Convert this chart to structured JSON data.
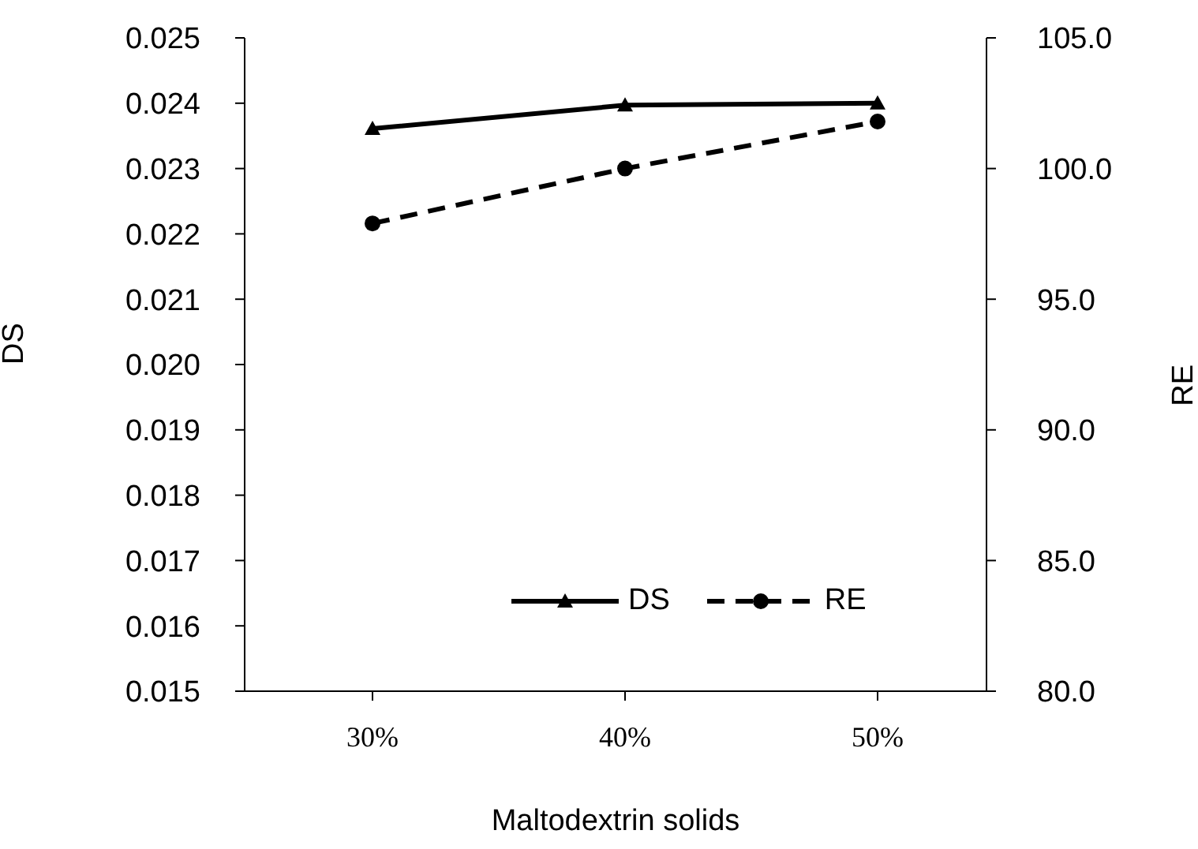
{
  "chart_data": {
    "type": "line",
    "xlabel": "Maltodextrin solids",
    "ylabel": "DS",
    "y2label": "RE",
    "categories": [
      "30%",
      "40%",
      "50%"
    ],
    "series": [
      {
        "name": "DS",
        "color": "#000000",
        "values": [
          0.02361,
          0.02397,
          0.024
        ],
        "marker": "triangle",
        "line_style": "solid"
      },
      {
        "name": "RE",
        "color": "#000000",
        "values": [
          97.9,
          100.0,
          101.8
        ],
        "axis": "y2",
        "marker": "circle",
        "line_style": "dashed"
      }
    ],
    "ylim": [
      0.015,
      0.025
    ],
    "yticks": [
      0.015,
      0.016,
      0.017,
      0.018,
      0.019,
      {
        "value": 0.02,
        "label": "0.020"
      },
      0.021,
      0.022,
      0.023,
      0.024,
      0.025
    ],
    "y2lim": [
      80,
      105
    ],
    "y2ticks": [
      {
        "value": 80,
        "label": "80.0"
      },
      {
        "value": 85,
        "label": "85.0"
      },
      {
        "value": 90,
        "label": "90.0"
      },
      {
        "value": 95,
        "label": "95.0"
      },
      {
        "value": 100,
        "label": "100.0"
      },
      {
        "value": 105,
        "label": "105.0"
      }
    ],
    "grid": false,
    "legend": "bottom right"
  }
}
